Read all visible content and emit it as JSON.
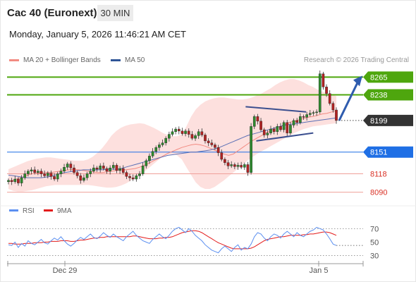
{
  "header": {
    "title": "Cac 40 (Euronext)",
    "timeframe": "30 MIN",
    "datetime": "Monday, January 5, 2026 11:46:21 AM CET"
  },
  "legend": {
    "items": [
      {
        "label": "MA 20 + Bollinger Bands",
        "color": "#f28b82"
      },
      {
        "label": "MA 50",
        "color": "#2f5597"
      }
    ],
    "credit": "Research © 2026 Trading Central"
  },
  "chart_data": [
    {
      "type": "candlestick",
      "x_ticks": [
        "Dec 29",
        "Jan 5"
      ],
      "ylim": [
        8080,
        8275
      ],
      "price_levels": [
        {
          "value": 8265,
          "label": "8265",
          "kind": "resistance",
          "color": "#4ea60e"
        },
        {
          "value": 8238,
          "label": "8238",
          "kind": "resistance",
          "color": "#4ea60e"
        },
        {
          "value": 8199,
          "label": "8199",
          "kind": "last",
          "color": "#333333"
        },
        {
          "value": 8151,
          "label": "8151",
          "kind": "pivot",
          "color": "#1f6fe5"
        },
        {
          "value": 8118,
          "label": "8118",
          "kind": "support",
          "color": "#d93025"
        },
        {
          "value": 8090,
          "label": "8090",
          "kind": "support",
          "color": "#d93025"
        }
      ],
      "close_path": [
        8108,
        8106,
        8110,
        8104,
        8112,
        8118,
        8122,
        8124,
        8120,
        8122,
        8118,
        8115,
        8119,
        8114,
        8110,
        8118,
        8122,
        8128,
        8133,
        8127,
        8120,
        8115,
        8108,
        8112,
        8118,
        8122,
        8127,
        8125,
        8130,
        8126,
        8122,
        8127,
        8131,
        8123,
        8126,
        8120,
        8114,
        8112,
        8110,
        8115,
        8118,
        8130,
        8138,
        8145,
        8152,
        8158,
        8162,
        8165,
        8172,
        8178,
        8182,
        8186,
        8183,
        8179,
        8183,
        8178,
        8172,
        8176,
        8182,
        8177,
        8168,
        8165,
        8162,
        8158,
        8150,
        8140,
        8135,
        8130,
        8132,
        8129,
        8131,
        8128,
        8132,
        8120,
        8190,
        8205,
        8198,
        8185,
        8177,
        8180,
        8186,
        8182,
        8190,
        8185,
        8196,
        8180,
        8192,
        8199,
        8196,
        8205,
        8204,
        8208,
        8210,
        8211,
        8212,
        8270,
        8250,
        8240,
        8225,
        8215,
        8199
      ],
      "ma20": [
        8106,
        8108,
        8111,
        8113,
        8116,
        8118,
        8119,
        8119,
        8120,
        8120,
        8121,
        8122,
        8123,
        8124,
        8125,
        8124,
        8123,
        8122,
        8121,
        8120,
        8120,
        8121,
        8122,
        8123,
        8124,
        8124,
        8125,
        8126,
        8128,
        8131,
        8134,
        8138,
        8141,
        8145,
        8149,
        8152,
        8155,
        8158,
        8160,
        8162,
        8163,
        8162,
        8160,
        8157,
        8154,
        8151,
        8148,
        8146,
        8148,
        8153,
        8158,
        8163,
        8168,
        8172,
        8176,
        8180,
        8184,
        8187,
        8190,
        8193,
        8196,
        8198,
        8200,
        8202,
        8204,
        8205,
        8207,
        8209,
        8210,
        8212,
        8214
      ],
      "ma50": [
        8116,
        8115,
        8114,
        8113,
        8112,
        8112,
        8112,
        8112,
        8113,
        8114,
        8116,
        8118,
        8120,
        8121,
        8122,
        8123,
        8124,
        8124,
        8124,
        8124,
        8124,
        8125,
        8125,
        8125,
        8126,
        8128,
        8130,
        8132,
        8134,
        8136,
        8138,
        8140,
        8142,
        8144,
        8146,
        8147,
        8148,
        8149,
        8150,
        8151,
        8151,
        8152,
        8153,
        8154,
        8156,
        8158,
        8161,
        8164,
        8167,
        8170,
        8173,
        8176,
        8178,
        8180,
        8182,
        8184,
        8186,
        8188,
        8190,
        8192,
        8193,
        8194,
        8195,
        8196,
        8197,
        8198,
        8199,
        8200,
        8201,
        8202,
        8203
      ],
      "bb_upper": [
        8125,
        8128,
        8131,
        8134,
        8137,
        8139,
        8141,
        8142,
        8143,
        8143,
        8142,
        8141,
        8140,
        8139,
        8138,
        8138,
        8138,
        8140,
        8144,
        8150,
        8157,
        8166,
        8176,
        8183,
        8188,
        8191,
        8193,
        8194,
        8195,
        8194,
        8191,
        8188,
        8184,
        8180,
        8177,
        8175,
        8175,
        8178,
        8190,
        8205,
        8216,
        8223,
        8228,
        8231,
        8233,
        8234,
        8234,
        8233,
        8232,
        8231,
        8231,
        8232,
        8234,
        8237,
        8240,
        8244,
        8248,
        8253,
        8257,
        8260,
        8262,
        8262,
        8260,
        8257,
        8253,
        8250,
        8246,
        8243,
        8240,
        8238,
        8236
      ],
      "bb_lower": [
        8095,
        8092,
        8091,
        8091,
        8092,
        8093,
        8095,
        8097,
        8099,
        8100,
        8101,
        8101,
        8101,
        8101,
        8101,
        8101,
        8101,
        8101,
        8100,
        8099,
        8098,
        8097,
        8097,
        8098,
        8100,
        8103,
        8107,
        8111,
        8116,
        8121,
        8127,
        8133,
        8139,
        8144,
        8147,
        8148,
        8146,
        8140,
        8128,
        8116,
        8105,
        8098,
        8095,
        8095,
        8098,
        8103,
        8108,
        8114,
        8120,
        8126,
        8132,
        8138,
        8143,
        8148,
        8152,
        8156,
        8160,
        8164,
        8168,
        8172,
        8176,
        8180,
        8183,
        8186,
        8188,
        8190,
        8191,
        8192,
        8193,
        8194,
        8195
      ],
      "pattern": {
        "type": "triangle",
        "upper": [
          [
            0.67,
            8220
          ],
          [
            0.84,
            8212
          ]
        ],
        "lower": [
          [
            0.7,
            8168
          ],
          [
            0.86,
            8180
          ]
        ]
      },
      "projection": {
        "from": 8199,
        "to": 8265
      }
    },
    {
      "type": "line",
      "series": [
        {
          "name": "RSI",
          "color": "#5b8ff0"
        },
        {
          "name": "9MA",
          "color": "#e31b1b"
        }
      ],
      "ylim": [
        20,
        85
      ],
      "y_ticks": [
        70,
        50,
        30
      ],
      "guides": [
        70,
        30
      ],
      "rsi": [
        46,
        45,
        50,
        42,
        48,
        44,
        52,
        48,
        46,
        50,
        54,
        49,
        47,
        52,
        56,
        53,
        58,
        52,
        47,
        44,
        48,
        53,
        57,
        54,
        58,
        62,
        57,
        55,
        59,
        64,
        60,
        57,
        62,
        58,
        55,
        52,
        58,
        62,
        66,
        60,
        56,
        52,
        50,
        48,
        54,
        58,
        62,
        58,
        55,
        60,
        66,
        70,
        72,
        68,
        64,
        70,
        66,
        60,
        56,
        52,
        46,
        42,
        38,
        36,
        34,
        40,
        44,
        40,
        36,
        42,
        46,
        38,
        42,
        40,
        47,
        58,
        64,
        62,
        56,
        52,
        58,
        62,
        60,
        56,
        62,
        66,
        62,
        58,
        64,
        60,
        58,
        62,
        66,
        68,
        72,
        70,
        68,
        62,
        55,
        47,
        45
      ],
      "ma9": [
        48,
        48,
        47,
        47,
        47,
        48,
        48,
        48,
        49,
        49,
        49,
        50,
        50,
        51,
        51,
        51,
        52,
        52,
        52,
        51,
        51,
        52,
        53,
        53,
        54,
        55,
        56,
        56,
        57,
        57,
        58,
        58,
        58,
        58,
        58,
        58,
        58,
        58,
        59,
        59,
        58,
        57,
        56,
        55,
        55,
        55,
        56,
        56,
        57,
        57,
        58,
        60,
        62,
        64,
        65,
        66,
        67,
        67,
        66,
        64,
        61,
        58,
        55,
        52,
        49,
        47,
        45,
        43,
        41,
        40,
        40,
        40,
        40,
        40,
        41,
        43,
        46,
        49,
        52,
        54,
        55,
        56,
        57,
        58,
        58,
        59,
        60,
        60,
        60,
        60,
        61,
        61,
        62,
        62,
        63,
        64,
        65,
        65,
        64,
        62,
        60
      ]
    }
  ]
}
